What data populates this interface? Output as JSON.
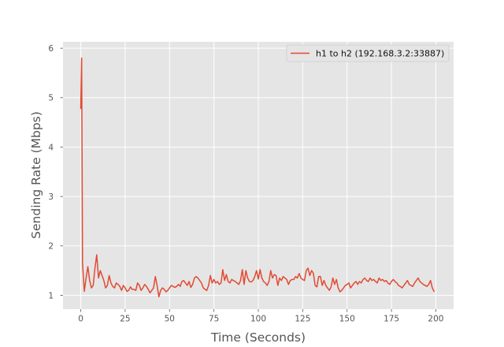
{
  "chart_data": {
    "type": "line",
    "title": "",
    "xlabel": "Time (Seconds)",
    "ylabel": "Sending Rate (Mbps)",
    "xlim": [
      -10,
      210
    ],
    "ylim": [
      0.72,
      6.13
    ],
    "xticks": [
      0,
      25,
      50,
      75,
      100,
      125,
      150,
      175,
      200
    ],
    "yticks": [
      1,
      2,
      3,
      4,
      5,
      6
    ],
    "grid": true,
    "legend_position": "top-right",
    "colors": {
      "background": "#e5e5e5",
      "grid": "#ffffff",
      "line": "#e24a33",
      "tick_label": "#555555"
    },
    "series": [
      {
        "name": "h1 to h2 (192.168.3.2:33887)",
        "x": [
          0,
          0.5,
          1,
          2,
          3,
          4,
          5,
          6,
          7,
          8,
          9,
          10,
          11,
          12,
          13,
          14,
          15,
          16,
          17,
          18,
          19,
          20,
          21,
          22,
          23,
          24,
          25,
          26,
          27,
          28,
          29,
          30,
          31,
          32,
          33,
          34,
          35,
          36,
          37,
          38,
          39,
          40,
          41,
          42,
          43,
          44,
          45,
          46,
          47,
          48,
          49,
          50,
          51,
          52,
          53,
          54,
          55,
          56,
          57,
          58,
          59,
          60,
          61,
          62,
          63,
          64,
          65,
          66,
          67,
          68,
          69,
          70,
          71,
          72,
          73,
          74,
          75,
          76,
          77,
          78,
          79,
          80,
          81,
          82,
          83,
          84,
          85,
          86,
          87,
          88,
          89,
          90,
          91,
          92,
          93,
          94,
          95,
          96,
          97,
          98,
          99,
          100,
          101,
          102,
          103,
          104,
          105,
          106,
          107,
          108,
          109,
          110,
          111,
          112,
          113,
          114,
          115,
          116,
          117,
          118,
          119,
          120,
          121,
          122,
          123,
          124,
          125,
          126,
          127,
          128,
          129,
          130,
          131,
          132,
          133,
          134,
          135,
          136,
          137,
          138,
          139,
          140,
          141,
          142,
          143,
          144,
          145,
          146,
          147,
          148,
          149,
          150,
          151,
          152,
          153,
          154,
          155,
          156,
          157,
          158,
          159,
          160,
          161,
          162,
          163,
          164,
          165,
          166,
          167,
          168,
          169,
          170,
          171,
          172,
          173,
          174,
          175,
          176,
          177,
          178,
          179,
          180,
          181,
          182,
          183,
          184,
          185,
          186,
          187,
          188,
          189,
          190,
          191,
          192,
          193,
          194,
          195,
          196,
          197,
          198,
          199
        ],
        "y": [
          4.78,
          5.8,
          1.65,
          1.08,
          1.35,
          1.58,
          1.3,
          1.15,
          1.2,
          1.55,
          1.82,
          1.35,
          1.5,
          1.4,
          1.3,
          1.15,
          1.2,
          1.4,
          1.25,
          1.18,
          1.15,
          1.25,
          1.22,
          1.18,
          1.1,
          1.2,
          1.15,
          1.08,
          1.1,
          1.17,
          1.12,
          1.12,
          1.1,
          1.25,
          1.2,
          1.1,
          1.15,
          1.22,
          1.18,
          1.12,
          1.05,
          1.1,
          1.15,
          1.38,
          1.2,
          0.97,
          1.1,
          1.15,
          1.12,
          1.07,
          1.1,
          1.15,
          1.2,
          1.18,
          1.16,
          1.18,
          1.22,
          1.18,
          1.28,
          1.3,
          1.25,
          1.2,
          1.28,
          1.16,
          1.22,
          1.35,
          1.38,
          1.35,
          1.3,
          1.25,
          1.15,
          1.12,
          1.1,
          1.2,
          1.4,
          1.25,
          1.32,
          1.25,
          1.28,
          1.22,
          1.25,
          1.52,
          1.3,
          1.42,
          1.28,
          1.25,
          1.32,
          1.3,
          1.28,
          1.25,
          1.22,
          1.3,
          1.52,
          1.22,
          1.5,
          1.35,
          1.28,
          1.27,
          1.3,
          1.38,
          1.5,
          1.33,
          1.52,
          1.35,
          1.28,
          1.25,
          1.2,
          1.28,
          1.5,
          1.35,
          1.42,
          1.4,
          1.2,
          1.35,
          1.3,
          1.38,
          1.35,
          1.32,
          1.22,
          1.3,
          1.32,
          1.32,
          1.38,
          1.35,
          1.44,
          1.35,
          1.32,
          1.3,
          1.5,
          1.55,
          1.4,
          1.5,
          1.45,
          1.2,
          1.17,
          1.38,
          1.38,
          1.2,
          1.3,
          1.2,
          1.15,
          1.1,
          1.17,
          1.35,
          1.22,
          1.32,
          1.15,
          1.07,
          1.1,
          1.15,
          1.2,
          1.22,
          1.25,
          1.15,
          1.2,
          1.25,
          1.28,
          1.22,
          1.28,
          1.25,
          1.32,
          1.35,
          1.3,
          1.28,
          1.35,
          1.3,
          1.32,
          1.28,
          1.25,
          1.35,
          1.3,
          1.32,
          1.28,
          1.3,
          1.25,
          1.22,
          1.28,
          1.32,
          1.28,
          1.25,
          1.2,
          1.18,
          1.15,
          1.2,
          1.25,
          1.3,
          1.22,
          1.2,
          1.18,
          1.25,
          1.3,
          1.35,
          1.28,
          1.25,
          1.22,
          1.2,
          1.18,
          1.22,
          1.3,
          1.15,
          1.08
        ]
      }
    ]
  }
}
